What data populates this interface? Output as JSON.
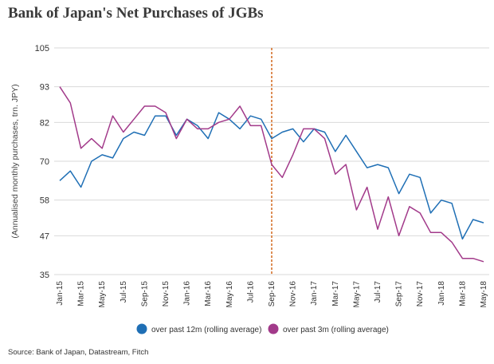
{
  "chart_data": {
    "type": "line",
    "title": "Bank of Japan's Net Purchases of JGBs",
    "ylabel": "(Annualised monthly purchases, trn. JPY)",
    "xlabel": "",
    "ylim": [
      35,
      105
    ],
    "yticks": [
      105,
      93,
      82,
      70,
      58,
      47,
      35
    ],
    "xticks": [
      "Jan-15",
      "Mar-15",
      "May-15",
      "Jul-15",
      "Sep-15",
      "Nov-15",
      "Jan-16",
      "Mar-16",
      "May-16",
      "Jul-16",
      "Sep-16",
      "Nov-16",
      "Jan-17",
      "Mar-17",
      "May-17",
      "Jul-17",
      "Sep-17",
      "Nov-17",
      "Jan-18",
      "Mar-18",
      "May-18"
    ],
    "x": [
      "Jan-15",
      "Feb-15",
      "Mar-15",
      "Apr-15",
      "May-15",
      "Jun-15",
      "Jul-15",
      "Aug-15",
      "Sep-15",
      "Oct-15",
      "Nov-15",
      "Dec-15",
      "Jan-16",
      "Feb-16",
      "Mar-16",
      "Apr-16",
      "May-16",
      "Jun-16",
      "Jul-16",
      "Aug-16",
      "Sep-16",
      "Oct-16",
      "Nov-16",
      "Dec-16",
      "Jan-17",
      "Feb-17",
      "Mar-17",
      "Apr-17",
      "May-17",
      "Jun-17",
      "Jul-17",
      "Aug-17",
      "Sep-17",
      "Oct-17",
      "Nov-17",
      "Dec-17",
      "Jan-18",
      "Feb-18",
      "Mar-18",
      "Apr-18",
      "May-18"
    ],
    "vline": {
      "at": "Sep-16",
      "color": "#d2691e"
    },
    "grid": true,
    "legend_position": "bottom",
    "series": [
      {
        "name": "over past 12m (rolling average)",
        "color": "#1f6fb5",
        "values": [
          64,
          67,
          62,
          70,
          72,
          71,
          77,
          79,
          78,
          84,
          84,
          78,
          83,
          81,
          77,
          85,
          83,
          80,
          84,
          83,
          77,
          79,
          80,
          76,
          80,
          79,
          73,
          78,
          73,
          68,
          69,
          68,
          60,
          66,
          65,
          54,
          58,
          57,
          46,
          52,
          51
        ]
      },
      {
        "name": "over past 3m (rolling average)",
        "color": "#a23a8a",
        "values": [
          93,
          88,
          74,
          77,
          74,
          84,
          79,
          83,
          87,
          87,
          85,
          77,
          83,
          80,
          80,
          82,
          83,
          87,
          81,
          81,
          69,
          65,
          72,
          80,
          80,
          77,
          66,
          69,
          55,
          62,
          49,
          59,
          47,
          56,
          54,
          48,
          48,
          45,
          40,
          40,
          39
        ]
      }
    ]
  },
  "source": "Source:  Bank of Japan, Datastream, Fitch"
}
